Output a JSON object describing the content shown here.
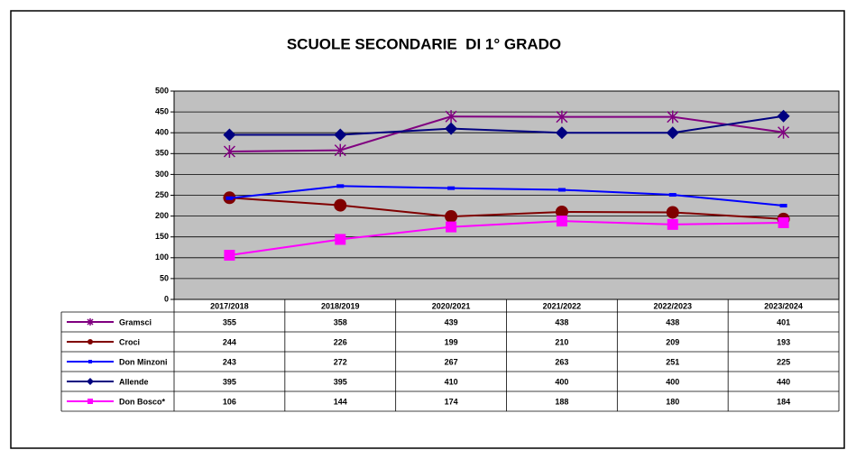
{
  "chart_data": {
    "type": "line",
    "title": "SCUOLE SECONDARIE  DI 1° GRADO",
    "categories": [
      "2017/2018",
      "2018/2019",
      "2020/2021",
      "2021/2022",
      "2022/2023",
      "2023/2024"
    ],
    "series": [
      {
        "name": "Gramsci",
        "color": "#800080",
        "marker": "star",
        "values": [
          355,
          358,
          439,
          438,
          438,
          401
        ]
      },
      {
        "name": "Croci",
        "color": "#800000",
        "marker": "circle",
        "values": [
          244,
          226,
          199,
          210,
          209,
          193
        ]
      },
      {
        "name": "Don Minzoni",
        "color": "#0000ff",
        "marker": "dash",
        "values": [
          243,
          272,
          267,
          263,
          251,
          225
        ]
      },
      {
        "name": "Allende",
        "color": "#000080",
        "marker": "diamond",
        "values": [
          395,
          395,
          410,
          400,
          400,
          440
        ]
      },
      {
        "name": "Don Bosco*",
        "color": "#ff00ff",
        "marker": "square",
        "values": [
          106,
          144,
          174,
          188,
          180,
          184
        ]
      }
    ],
    "ylim": [
      0,
      500
    ],
    "yticks": [
      0,
      50,
      100,
      150,
      200,
      250,
      300,
      350,
      400,
      450,
      500
    ],
    "grid": true,
    "plot_background": "#c0c0c0"
  }
}
